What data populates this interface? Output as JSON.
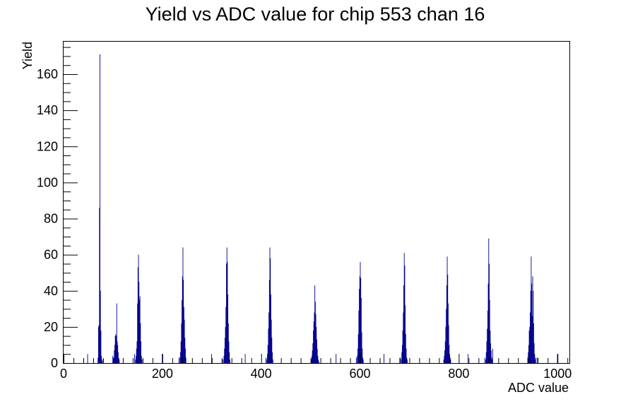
{
  "chart_data": {
    "type": "bar",
    "title": "Yield vs ADC value for chip 553 chan 16",
    "xlabel": "ADC value",
    "ylabel": "Yield",
    "xlim": [
      0,
      1024
    ],
    "ylim": [
      0,
      178
    ],
    "x_ticks": [
      0,
      200,
      400,
      600,
      800,
      1000
    ],
    "y_ticks": [
      0,
      20,
      40,
      60,
      80,
      100,
      120,
      140,
      160
    ],
    "bin_width": 1,
    "bar_color": "#00008b",
    "grid": false,
    "legend": "none",
    "series": [
      {
        "x": [
          48,
          69,
          70,
          71,
          72,
          73,
          74,
          75,
          76,
          77,
          78,
          99,
          101,
          102,
          103,
          104,
          105,
          106,
          107,
          108,
          109,
          110,
          111,
          112,
          143,
          145,
          146,
          147,
          148,
          149,
          150,
          151,
          152,
          153,
          154,
          155,
          156,
          157,
          158,
          199,
          233,
          235,
          236,
          237,
          238,
          239,
          240,
          241,
          242,
          243,
          244,
          245,
          246,
          247,
          299,
          322,
          324,
          325,
          326,
          327,
          328,
          329,
          330,
          331,
          332,
          333,
          334,
          335,
          336,
          367,
          409,
          411,
          412,
          413,
          414,
          415,
          416,
          417,
          418,
          419,
          420,
          421,
          422,
          423,
          501,
          502,
          503,
          504,
          505,
          506,
          507,
          508,
          509,
          510,
          511,
          512,
          513,
          514,
          515,
          516,
          551,
          592,
          594,
          595,
          596,
          597,
          598,
          599,
          600,
          601,
          602,
          603,
          604,
          605,
          606,
          648,
          681,
          683,
          684,
          685,
          686,
          687,
          688,
          689,
          690,
          691,
          692,
          693,
          694,
          695,
          769,
          770,
          771,
          772,
          773,
          774,
          775,
          776,
          777,
          778,
          779,
          780,
          781,
          782,
          783,
          818,
          852,
          854,
          855,
          856,
          857,
          858,
          859,
          860,
          861,
          862,
          863,
          864,
          865,
          866,
          867,
          868,
          939,
          940,
          941,
          942,
          943,
          944,
          945,
          946,
          947,
          948,
          949,
          950,
          951,
          952,
          953,
          954,
          955,
          958,
          999
        ],
        "values": [
          5,
          3,
          20,
          21,
          86,
          171,
          40,
          18,
          4,
          1,
          2,
          4,
          3,
          7,
          10,
          15,
          16,
          15,
          33,
          12,
          10,
          6,
          3,
          2,
          5,
          2,
          4,
          8,
          12,
          33,
          53,
          60,
          45,
          35,
          37,
          22,
          12,
          4,
          2,
          5,
          3,
          3,
          6,
          12,
          22,
          35,
          48,
          64,
          46,
          31,
          24,
          14,
          8,
          3,
          5,
          2,
          4,
          8,
          14,
          20,
          31,
          55,
          64,
          56,
          38,
          22,
          12,
          6,
          2,
          5,
          3,
          2,
          5,
          10,
          19,
          28,
          46,
          64,
          58,
          38,
          24,
          14,
          6,
          2,
          2,
          4,
          7,
          11,
          18,
          23,
          28,
          43,
          34,
          27,
          20,
          13,
          8,
          4,
          2,
          1,
          5,
          3,
          4,
          8,
          16,
          29,
          41,
          48,
          56,
          47,
          36,
          17,
          8,
          3,
          2,
          5,
          3,
          2,
          6,
          10,
          18,
          28,
          43,
          61,
          54,
          32,
          16,
          8,
          3,
          2,
          2,
          4,
          7,
          12,
          20,
          30,
          43,
          59,
          49,
          33,
          21,
          10,
          5,
          3,
          2,
          5,
          3,
          2,
          6,
          12,
          19,
          29,
          44,
          69,
          55,
          35,
          18,
          11,
          7,
          3,
          2,
          8,
          3,
          6,
          10,
          18,
          20,
          28,
          40,
          59,
          44,
          26,
          48,
          40,
          22,
          11,
          5,
          2,
          3,
          3,
          5
        ]
      }
    ]
  }
}
